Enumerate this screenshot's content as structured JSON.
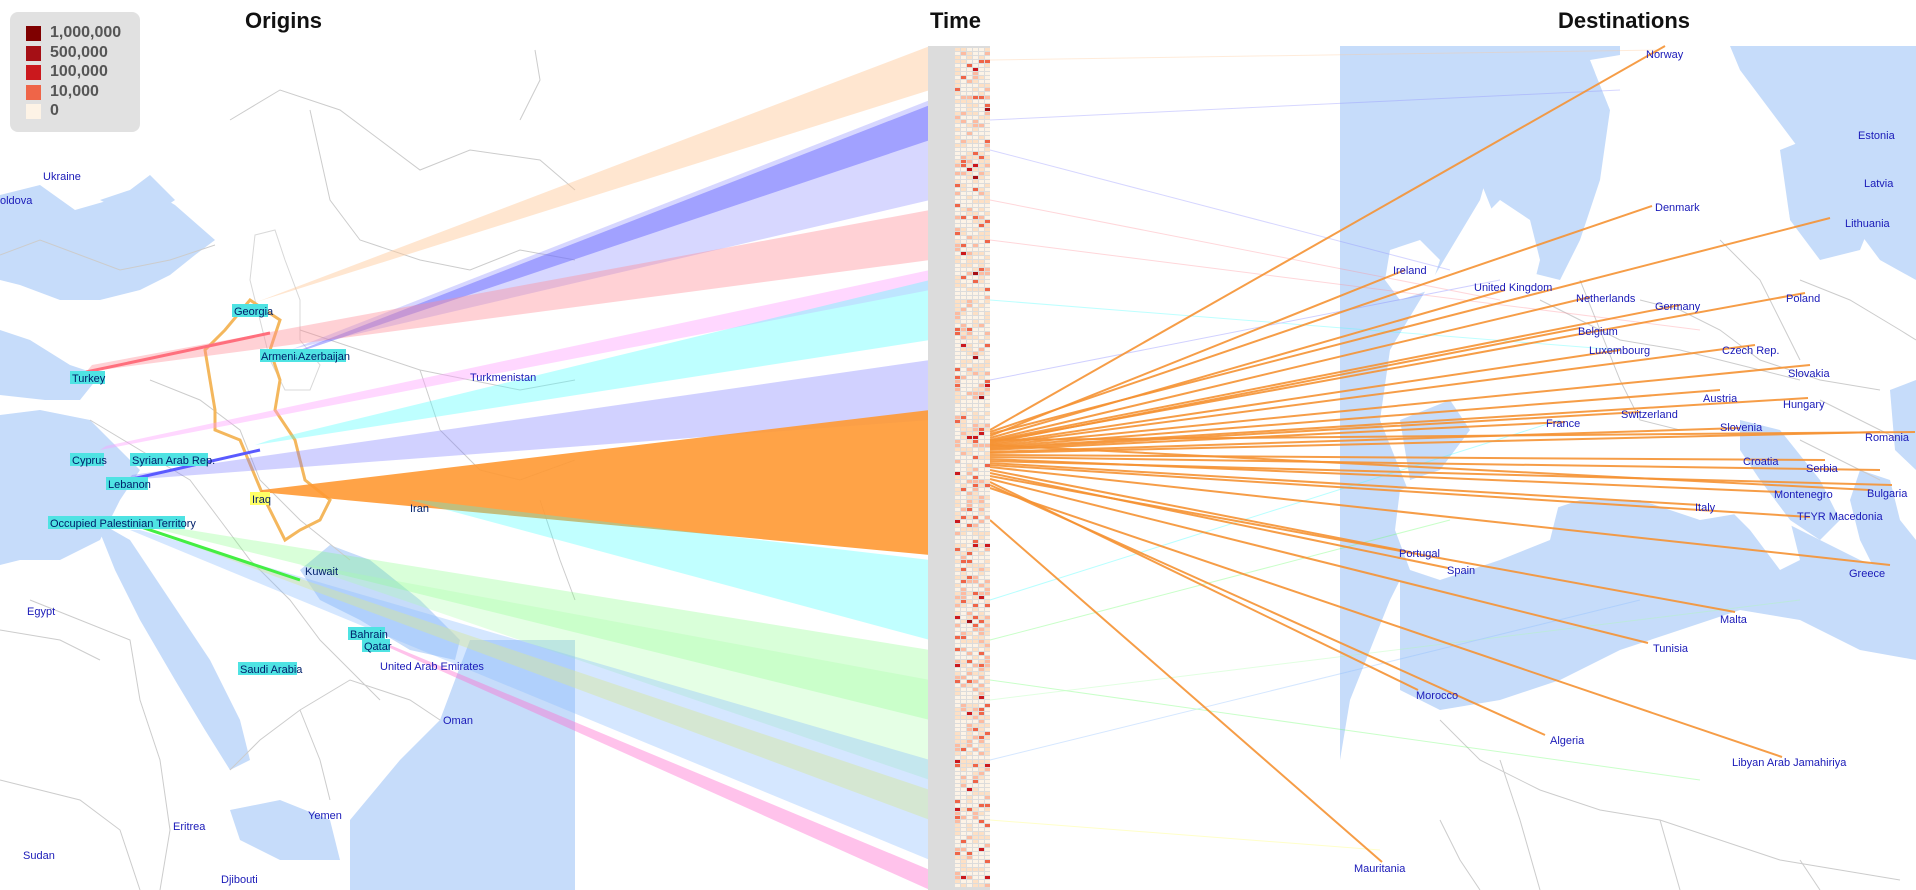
{
  "titles": {
    "origins": "Origins",
    "time": "Time",
    "destinations": "Destinations"
  },
  "legend": [
    {
      "label": "1,000,000",
      "color": "#7f0000"
    },
    {
      "label": "500,000",
      "color": "#a50f15"
    },
    {
      "label": "100,000",
      "color": "#cb181d"
    },
    {
      "label": "10,000",
      "color": "#ef6548"
    },
    {
      "label": "0",
      "color": "#fdf3e6"
    }
  ],
  "origin_countries": [
    {
      "name": "Georgia",
      "flow": "#ffc896"
    },
    {
      "name": "Armenia",
      "flow": "#8c8cff"
    },
    {
      "name": "Azerbaijan",
      "flow": "#7070ff"
    },
    {
      "name": "Turkey",
      "flow": "#ff8c96"
    },
    {
      "name": "Cyprus",
      "flow": "#ff9cff"
    },
    {
      "name": "Syrian Arab Rep.",
      "flow": "#44ffff"
    },
    {
      "name": "Lebanon",
      "flow": "#7a7aff"
    },
    {
      "name": "Iraq",
      "flow": "#ff9933"
    },
    {
      "name": "Iran",
      "flow": "#33ffff"
    },
    {
      "name": "Occupied Palestinian Territory",
      "flow": "#66ff66"
    },
    {
      "name": "Kuwait",
      "flow": "#aaffaa"
    },
    {
      "name": "Bahrain",
      "flow": "#ffff66"
    },
    {
      "name": "Qatar",
      "flow": "#ff66cc"
    },
    {
      "name": "Saudi Arabia",
      "flow": "#88bbff"
    }
  ],
  "origin_region_labels": [
    "Ukraine",
    "oldova",
    "Turkmenistan",
    "United Arab Emirates",
    "Oman",
    "Egypt",
    "Yemen",
    "Eritrea",
    "Sudan",
    "Djibouti"
  ],
  "destination_countries": [
    "Norway",
    "Estonia",
    "Latvia",
    "Denmark",
    "Lithuania",
    "Ireland",
    "United Kingdom",
    "Netherlands",
    "Germany",
    "Poland",
    "Belgium",
    "Luxembourg",
    "Czech Rep.",
    "Slovakia",
    "Austria",
    "Hungary",
    "Switzerland",
    "France",
    "Slovenia",
    "Romania",
    "Croatia",
    "Serbia",
    "Montenegro",
    "Bulgaria",
    "Italy",
    "TFYR Macedonia",
    "Portugal",
    "Spain",
    "Greece",
    "Malta",
    "Tunisia",
    "Morocco",
    "Algeria",
    "Libyan Arab Jamahiriya",
    "Mauritania"
  ]
}
